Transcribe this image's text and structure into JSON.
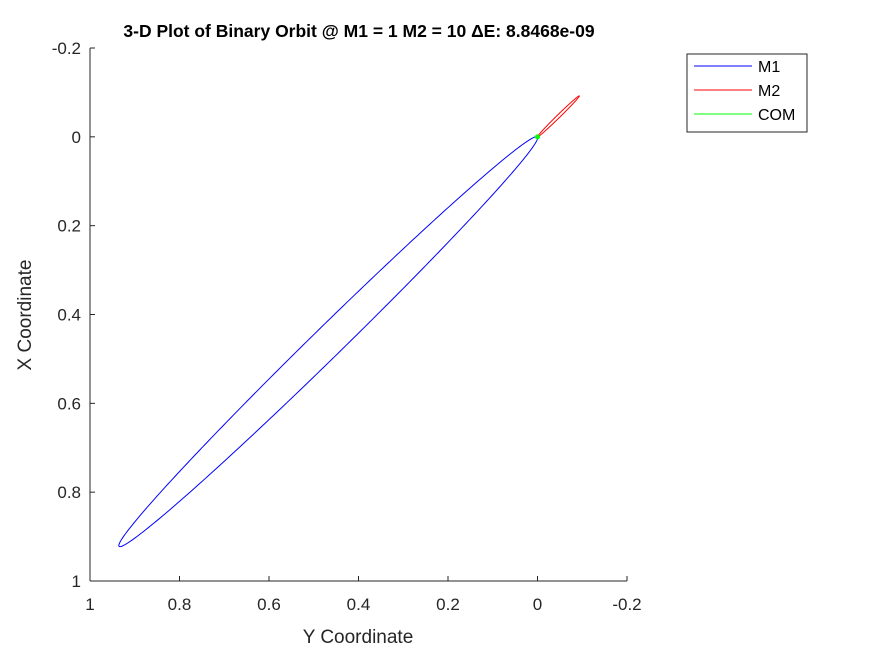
{
  "chart_data": {
    "type": "line",
    "title": "3-D Plot of Binary Orbit @ M1 = 1 M2 = 10 ΔE: 8.8468e-09",
    "xlabel": "Y Coordinate",
    "ylabel": "X Coordinate",
    "xlim": [
      1,
      -0.2
    ],
    "ylim": [
      1,
      -0.2
    ],
    "x_reversed": true,
    "y_reversed": true,
    "x_ticks": [
      1,
      0.8,
      0.6,
      0.4,
      0.2,
      0,
      -0.2
    ],
    "x_tick_labels": [
      "1",
      "0.8",
      "0.6",
      "0.4",
      "0.2",
      "0",
      "-0.2"
    ],
    "y_ticks": [
      -0.2,
      0,
      0.2,
      0.4,
      0.6,
      0.8,
      1
    ],
    "y_tick_labels": [
      "-0.2",
      "0",
      "0.2",
      "0.4",
      "0.6",
      "0.8",
      "1"
    ],
    "grid": false,
    "legend_position": "outside-top-right",
    "series": [
      {
        "name": "M1",
        "color": "#0000ff",
        "orbit": {
          "periapsis": {
            "y": 0.0,
            "x": 0.0
          },
          "apoapsis": {
            "y": 0.935,
            "x": 0.922
          },
          "semi_minor": 0.034
        }
      },
      {
        "name": "M2",
        "color": "#ff0000",
        "orbit": {
          "periapsis": {
            "y": 0.0,
            "x": 0.0
          },
          "apoapsis": {
            "y": -0.0935,
            "x": -0.0922
          },
          "semi_minor": 0.0034
        }
      },
      {
        "name": "COM",
        "color": "#00ff00",
        "point": {
          "y": 0.0,
          "x": 0.0
        }
      }
    ]
  }
}
